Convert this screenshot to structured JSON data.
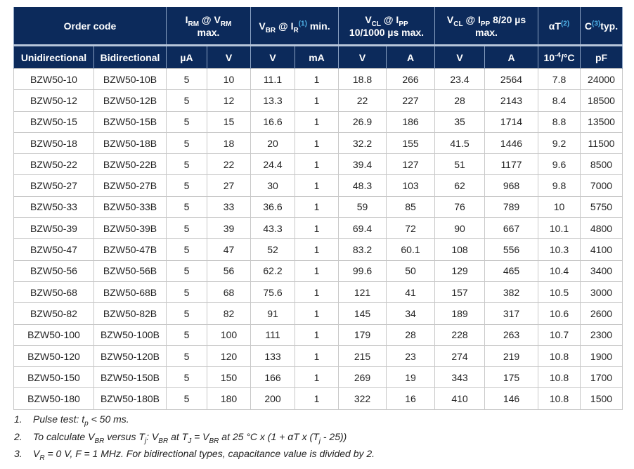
{
  "header_row1": [
    {
      "span": 2,
      "seg": [
        [
          "Order code"
        ]
      ]
    },
    {
      "span": 2,
      "seg": [
        [
          "I"
        ],
        [
          "RM",
          "sub"
        ],
        [
          " @ V"
        ],
        [
          "RM",
          "sub"
        ],
        [
          "\nmax."
        ]
      ]
    },
    {
      "span": 2,
      "seg": [
        [
          "V"
        ],
        [
          "BR",
          "sub"
        ],
        [
          " @ I"
        ],
        [
          "R",
          "sub"
        ],
        [
          "(1)",
          "ref"
        ],
        [
          " min."
        ]
      ]
    },
    {
      "span": 2,
      "seg": [
        [
          "V"
        ],
        [
          "CL",
          "sub"
        ],
        [
          " @ I"
        ],
        [
          "PP",
          "sub"
        ],
        [
          "\n10/1000 µs max."
        ]
      ]
    },
    {
      "span": 2,
      "seg": [
        [
          "V"
        ],
        [
          "CL",
          "sub"
        ],
        [
          " @ I"
        ],
        [
          "PP",
          "sub"
        ],
        [
          " 8/20 µs\nmax."
        ]
      ]
    },
    {
      "span": 1,
      "seg": [
        [
          "αT"
        ],
        [
          "(2)",
          "ref"
        ]
      ]
    },
    {
      "span": 1,
      "seg": [
        [
          "C"
        ],
        [
          "(3)",
          "ref"
        ],
        [
          "typ."
        ]
      ]
    }
  ],
  "header_row2": [
    [
      [
        "Unidirectional"
      ]
    ],
    [
      [
        "Bidirectional"
      ]
    ],
    [
      [
        "µA"
      ]
    ],
    [
      [
        "V"
      ]
    ],
    [
      [
        "V"
      ]
    ],
    [
      [
        "mA"
      ]
    ],
    [
      [
        "V"
      ]
    ],
    [
      [
        "A"
      ]
    ],
    [
      [
        "V"
      ]
    ],
    [
      [
        "A"
      ]
    ],
    [
      [
        "10"
      ],
      [
        "-4",
        "sup"
      ],
      [
        "/°C"
      ]
    ],
    [
      [
        "pF"
      ]
    ]
  ],
  "rows": [
    [
      "BZW50-10",
      "BZW50-10B",
      "5",
      "10",
      "11.1",
      "1",
      "18.8",
      "266",
      "23.4",
      "2564",
      "7.8",
      "24000"
    ],
    [
      "BZW50-12",
      "BZW50-12B",
      "5",
      "12",
      "13.3",
      "1",
      "22",
      "227",
      "28",
      "2143",
      "8.4",
      "18500"
    ],
    [
      "BZW50-15",
      "BZW50-15B",
      "5",
      "15",
      "16.6",
      "1",
      "26.9",
      "186",
      "35",
      "1714",
      "8.8",
      "13500"
    ],
    [
      "BZW50-18",
      "BZW50-18B",
      "5",
      "18",
      "20",
      "1",
      "32.2",
      "155",
      "41.5",
      "1446",
      "9.2",
      "11500"
    ],
    [
      "BZW50-22",
      "BZW50-22B",
      "5",
      "22",
      "24.4",
      "1",
      "39.4",
      "127",
      "51",
      "1177",
      "9.6",
      "8500"
    ],
    [
      "BZW50-27",
      "BZW50-27B",
      "5",
      "27",
      "30",
      "1",
      "48.3",
      "103",
      "62",
      "968",
      "9.8",
      "7000"
    ],
    [
      "BZW50-33",
      "BZW50-33B",
      "5",
      "33",
      "36.6",
      "1",
      "59",
      "85",
      "76",
      "789",
      "10",
      "5750"
    ],
    [
      "BZW50-39",
      "BZW50-39B",
      "5",
      "39",
      "43.3",
      "1",
      "69.4",
      "72",
      "90",
      "667",
      "10.1",
      "4800"
    ],
    [
      "BZW50-47",
      "BZW50-47B",
      "5",
      "47",
      "52",
      "1",
      "83.2",
      "60.1",
      "108",
      "556",
      "10.3",
      "4100"
    ],
    [
      "BZW50-56",
      "BZW50-56B",
      "5",
      "56",
      "62.2",
      "1",
      "99.6",
      "50",
      "129",
      "465",
      "10.4",
      "3400"
    ],
    [
      "BZW50-68",
      "BZW50-68B",
      "5",
      "68",
      "75.6",
      "1",
      "121",
      "41",
      "157",
      "382",
      "10.5",
      "3000"
    ],
    [
      "BZW50-82",
      "BZW50-82B",
      "5",
      "82",
      "91",
      "1",
      "145",
      "34",
      "189",
      "317",
      "10.6",
      "2600"
    ],
    [
      "BZW50-100",
      "BZW50-100B",
      "5",
      "100",
      "111",
      "1",
      "179",
      "28",
      "228",
      "263",
      "10.7",
      "2300"
    ],
    [
      "BZW50-120",
      "BZW50-120B",
      "5",
      "120",
      "133",
      "1",
      "215",
      "23",
      "274",
      "219",
      "10.8",
      "1900"
    ],
    [
      "BZW50-150",
      "BZW50-150B",
      "5",
      "150",
      "166",
      "1",
      "269",
      "19",
      "343",
      "175",
      "10.8",
      "1700"
    ],
    [
      "BZW50-180",
      "BZW50-180B",
      "5",
      "180",
      "200",
      "1",
      "322",
      "16",
      "410",
      "146",
      "10.8",
      "1500"
    ]
  ],
  "notes": [
    {
      "num": "1.",
      "seg": [
        [
          "Pulse test: t"
        ],
        [
          "p",
          "sub"
        ],
        [
          " < 50 ms."
        ]
      ]
    },
    {
      "num": "2.",
      "seg": [
        [
          "To calculate V"
        ],
        [
          "BR",
          "sub"
        ],
        [
          " versus T"
        ],
        [
          "j",
          "sub"
        ],
        [
          ": V"
        ],
        [
          "BR",
          "sub"
        ],
        [
          " at T"
        ],
        [
          "J",
          "sub"
        ],
        [
          " = V"
        ],
        [
          "BR",
          "sub"
        ],
        [
          " at 25 °C x (1 + αT x (T"
        ],
        [
          "j",
          "sub"
        ],
        [
          " - 25))"
        ]
      ]
    },
    {
      "num": "3.",
      "seg": [
        [
          "V"
        ],
        [
          "R",
          "sub"
        ],
        [
          " = 0 V, F = 1 MHz. For bidirectional types, capacitance value is divided by 2."
        ]
      ]
    }
  ],
  "colors": {
    "header_bg": "#0c2a5b",
    "ref": "#4fb3e8"
  }
}
